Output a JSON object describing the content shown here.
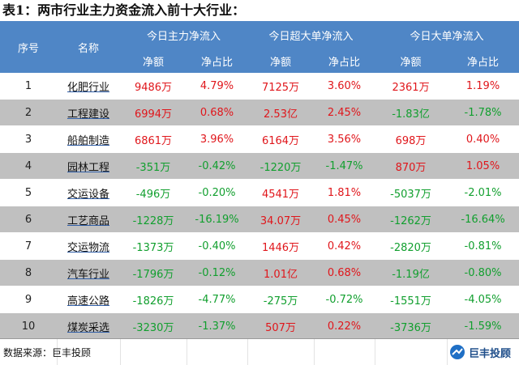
{
  "title": "表1：两市行业主力资金流入前十大行业：",
  "header": {
    "seq": "序号",
    "name": "名称",
    "groups": [
      "今日主力净流入",
      "今日超大单净流入",
      "今日大单净流入"
    ],
    "sub_amount": "净额",
    "sub_ratio": "净占比"
  },
  "rows": [
    {
      "seq": "1",
      "name": "化肥行业",
      "v": [
        "9486万",
        "4.79%",
        "7125万",
        "3.60%",
        "2361万",
        "1.19%"
      ]
    },
    {
      "seq": "2",
      "name": "工程建设",
      "v": [
        "6994万",
        "0.68%",
        "2.53亿",
        "2.45%",
        "-1.83亿",
        "-1.78%"
      ]
    },
    {
      "seq": "3",
      "name": "船舶制造",
      "v": [
        "6861万",
        "3.96%",
        "6164万",
        "3.56%",
        "698万",
        "0.40%"
      ]
    },
    {
      "seq": "4",
      "name": "园林工程",
      "v": [
        "-351万",
        "-0.42%",
        "-1220万",
        "-1.47%",
        "870万",
        "1.05%"
      ]
    },
    {
      "seq": "5",
      "name": "交运设备",
      "v": [
        "-496万",
        "-0.20%",
        "4541万",
        "1.81%",
        "-5037万",
        "-2.01%"
      ]
    },
    {
      "seq": "6",
      "name": "工艺商品",
      "v": [
        "-1228万",
        "-16.19%",
        "34.07万",
        "0.45%",
        "-1262万",
        "-16.64%"
      ]
    },
    {
      "seq": "7",
      "name": "交运物流",
      "v": [
        "-1373万",
        "-0.40%",
        "1446万",
        "0.42%",
        "-2820万",
        "-0.81%"
      ]
    },
    {
      "seq": "8",
      "name": "汽车行业",
      "v": [
        "-1796万",
        "-0.12%",
        "1.01亿",
        "0.68%",
        "-1.19亿",
        "-0.80%"
      ]
    },
    {
      "seq": "9",
      "name": "高速公路",
      "v": [
        "-1826万",
        "-4.77%",
        "-275万",
        "-0.72%",
        "-1551万",
        "-4.05%"
      ]
    },
    {
      "seq": "10",
      "name": "煤炭采选",
      "v": [
        "-3230万",
        "-1.37%",
        "507万",
        "0.22%",
        "-3736万",
        "-1.59%"
      ]
    }
  ],
  "colors": {
    "positive": "#e0161b",
    "negative": "#119f2e",
    "header": "#4f86c6"
  },
  "footer": {
    "source": "数据来源：巨丰投顾",
    "logo_text": "巨丰投顾",
    "logo_icon": "jufeng-logo-icon"
  }
}
